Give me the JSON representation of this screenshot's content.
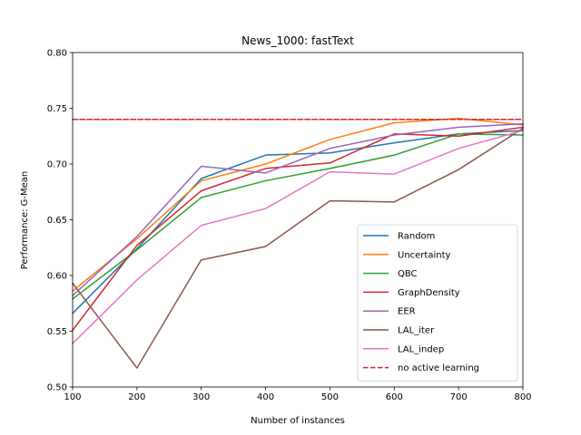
{
  "chart_data": {
    "type": "line",
    "title": "News_1000: fastText",
    "xlabel": "Number of instances",
    "ylabel": "Performance: G-Mean",
    "xlim": [
      100,
      800
    ],
    "ylim": [
      0.5,
      0.8
    ],
    "xticks": [
      100,
      200,
      300,
      400,
      500,
      600,
      700,
      800
    ],
    "yticks": [
      0.5,
      0.55,
      0.6,
      0.65,
      0.7,
      0.75,
      0.8
    ],
    "x": [
      100,
      200,
      300,
      400,
      500,
      600,
      700,
      800
    ],
    "grid": false,
    "legend_position": "lower-right",
    "series": [
      {
        "name": "Random",
        "color": "#1f77b4",
        "style": "solid",
        "values": [
          0.566,
          0.624,
          0.687,
          0.708,
          0.71,
          0.719,
          0.727,
          0.73
        ]
      },
      {
        "name": "Uncertainty",
        "color": "#ff7f0e",
        "style": "solid",
        "values": [
          0.586,
          0.633,
          0.685,
          0.7,
          0.722,
          0.737,
          0.741,
          0.735
        ]
      },
      {
        "name": "QBC",
        "color": "#2ca02c",
        "style": "solid",
        "values": [
          0.579,
          0.623,
          0.67,
          0.685,
          0.696,
          0.708,
          0.727,
          0.726
        ]
      },
      {
        "name": "GraphDensity",
        "color": "#d62728",
        "style": "solid",
        "values": [
          0.551,
          0.627,
          0.676,
          0.696,
          0.701,
          0.727,
          0.725,
          0.733
        ]
      },
      {
        "name": "EER",
        "color": "#9467bd",
        "style": "solid",
        "values": [
          0.582,
          0.635,
          0.698,
          0.692,
          0.714,
          0.726,
          0.733,
          0.736
        ]
      },
      {
        "name": "LAL_iter",
        "color": "#8c564b",
        "style": "solid",
        "values": [
          0.593,
          0.517,
          0.614,
          0.626,
          0.667,
          0.666,
          0.695,
          0.732
        ]
      },
      {
        "name": "LAL_indep",
        "color": "#e377c2",
        "style": "solid",
        "values": [
          0.539,
          0.596,
          0.645,
          0.66,
          0.693,
          0.691,
          0.714,
          0.73
        ]
      },
      {
        "name": "no active learning",
        "color": "#d62728",
        "style": "dashed",
        "values": [
          0.74,
          0.74,
          0.74,
          0.74,
          0.74,
          0.74,
          0.74,
          0.74
        ]
      }
    ]
  }
}
